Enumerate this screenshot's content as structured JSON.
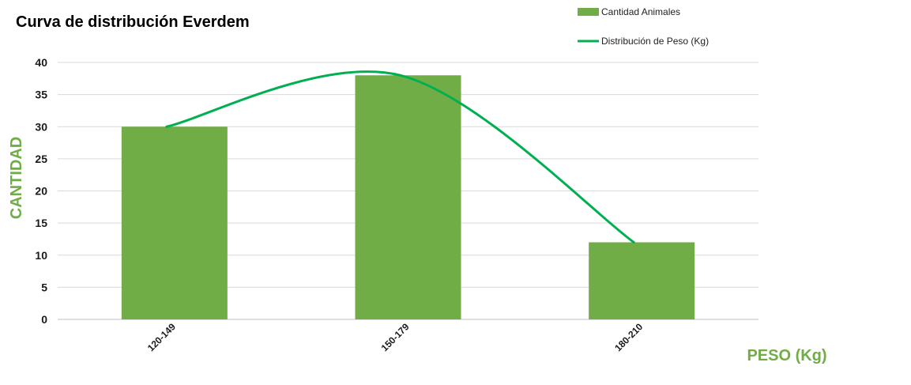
{
  "chart_data": {
    "type": "bar",
    "title": "Curva de distribución Everdem",
    "xlabel": "PESO (Kg)",
    "ylabel": "CANTIDAD",
    "categories": [
      "120-149",
      "150-179",
      "180-210"
    ],
    "series": [
      {
        "name": "Cantidad Animales",
        "type": "bar",
        "values": [
          30,
          38,
          12
        ]
      },
      {
        "name": "Distribución de Peso (Kg)",
        "type": "line",
        "smooth": true,
        "values": [
          30,
          38,
          12
        ]
      }
    ],
    "ylim": [
      0,
      40
    ],
    "yticks": [
      0,
      5,
      10,
      15,
      20,
      25,
      30,
      35,
      40
    ],
    "grid": true,
    "legend_position": "top-right"
  },
  "colors": {
    "bar": "#70ad47",
    "line": "#00b050",
    "axis_label": "#70ad47",
    "grid": "#d9d9d9"
  }
}
